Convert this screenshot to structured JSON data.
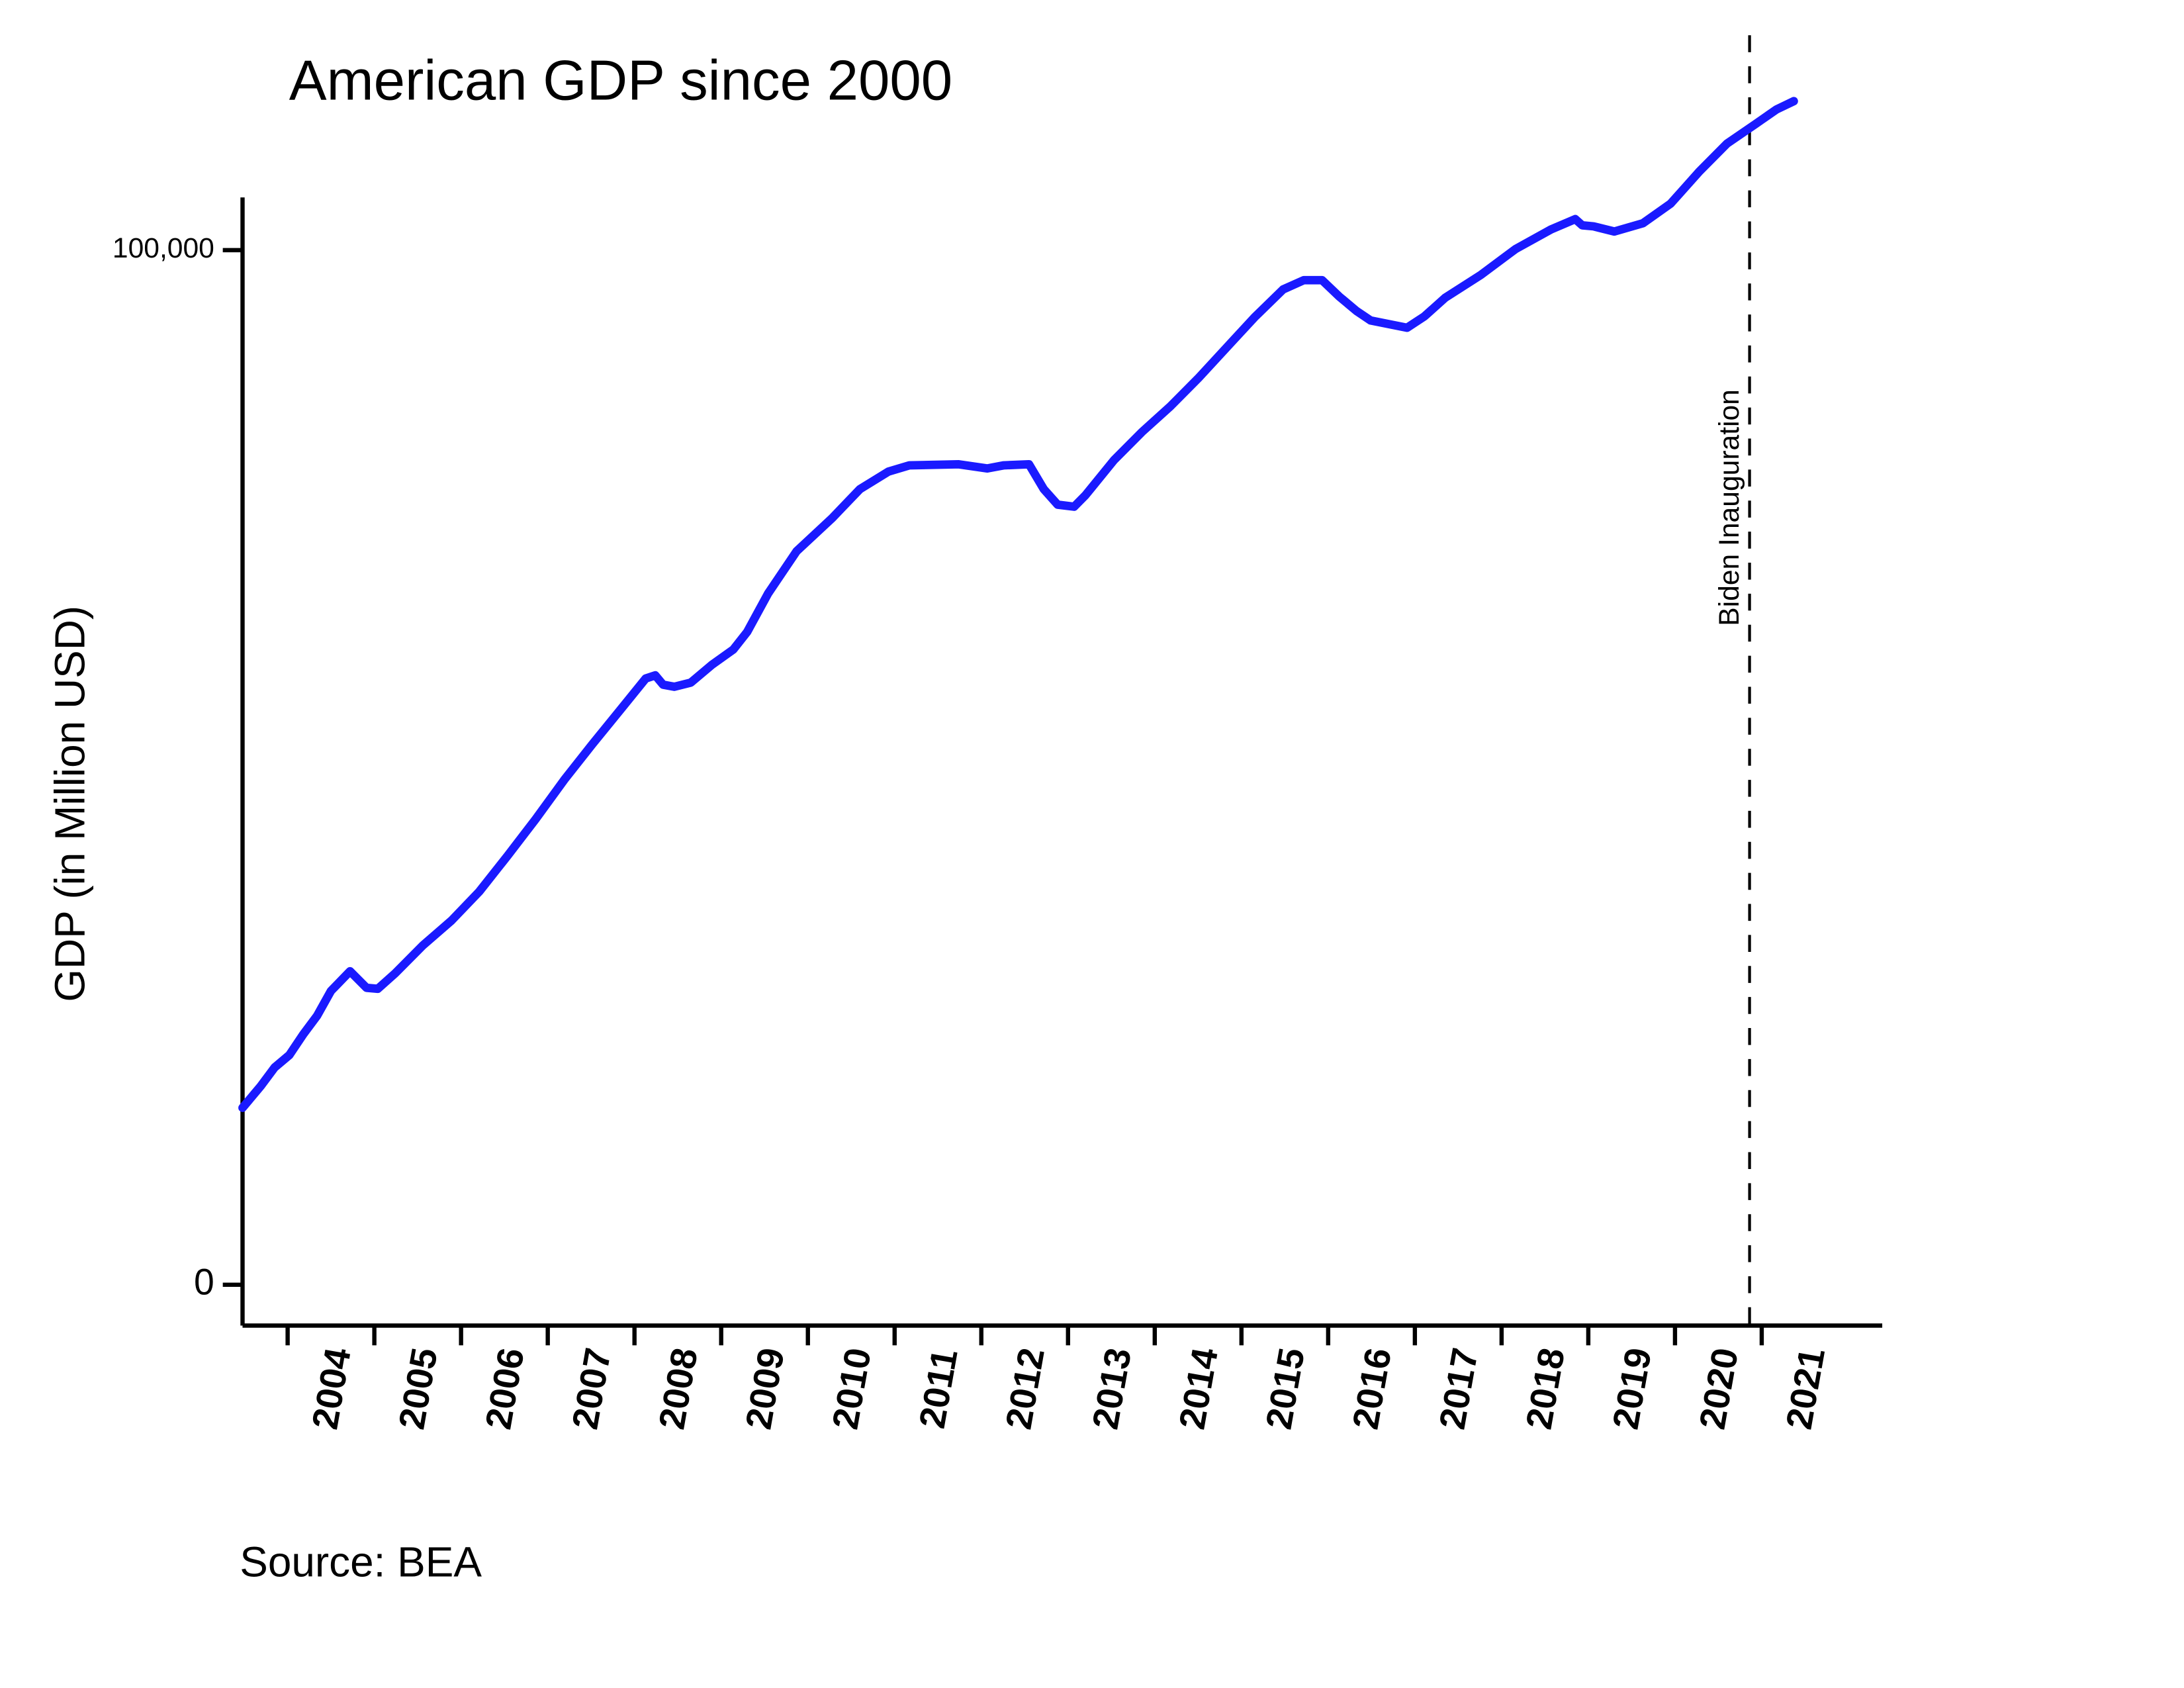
{
  "chart_data": {
    "type": "line",
    "title": "American GDP since 2000",
    "y_label": "GDP (in Million USD)",
    "source": "Source: BEA",
    "xlim": [
      2003.48,
      2022.39
    ],
    "xticks": [
      2004,
      2005,
      2006,
      2007,
      2008,
      2009,
      2010,
      2011,
      2012,
      2013,
      2014,
      2015,
      2016,
      2017,
      2018,
      2019,
      2020,
      2021
    ],
    "ylim": [
      -3950,
      116000
    ],
    "yticks": [
      0,
      {
        "value": 100000,
        "label": "100,000"
      }
    ],
    "series": [
      {
        "color": "#1a1aff",
        "x": [
          2003.48,
          2003.69,
          2003.85,
          2004.02,
          2004.18,
          2004.34,
          2004.5,
          2004.72,
          2004.91,
          2005.04,
          2005.24,
          2005.56,
          2005.89,
          2006.21,
          2006.54,
          2006.86,
          2007.19,
          2007.51,
          2007.84,
          2008.13,
          2008.24,
          2008.33,
          2008.46,
          2008.65,
          2008.89,
          2009.14,
          2009.3,
          2009.54,
          2009.87,
          2010.28,
          2010.6,
          2010.93,
          2011.17,
          2011.74,
          2012.07,
          2012.26,
          2012.55,
          2012.72,
          2012.88,
          2013.07,
          2013.2,
          2013.53,
          2013.85,
          2014.18,
          2014.5,
          2014.83,
          2015.15,
          2015.48,
          2015.72,
          2015.93,
          2016.13,
          2016.33,
          2016.49,
          2016.91,
          2017.11,
          2017.35,
          2017.76,
          2018.16,
          2018.57,
          2018.85,
          2018.93,
          2019.06,
          2019.3,
          2019.63,
          2019.95,
          2020.28,
          2020.6,
          2020.93,
          2021.17,
          2021.37
        ],
        "values": [
          17100,
          19200,
          21000,
          22200,
          24200,
          26000,
          28400,
          30300,
          28700,
          28600,
          30100,
          32800,
          35200,
          38000,
          41500,
          45000,
          48800,
          52200,
          55600,
          58600,
          58900,
          58000,
          57800,
          58200,
          59900,
          61400,
          63100,
          66800,
          70900,
          74100,
          76900,
          78600,
          79200,
          79300,
          78900,
          79200,
          79300,
          76900,
          75400,
          75200,
          76300,
          79700,
          82400,
          84900,
          87600,
          90600,
          93500,
          96200,
          97100,
          97100,
          95500,
          94100,
          93200,
          92500,
          93600,
          95400,
          97600,
          100100,
          102000,
          103000,
          102400,
          102300,
          101800,
          102600,
          104500,
          107600,
          110300,
          112200,
          113600,
          114400
        ]
      }
    ],
    "annotations": [
      {
        "text": "Biden Inauguration",
        "x": 2020.86
      }
    ]
  }
}
